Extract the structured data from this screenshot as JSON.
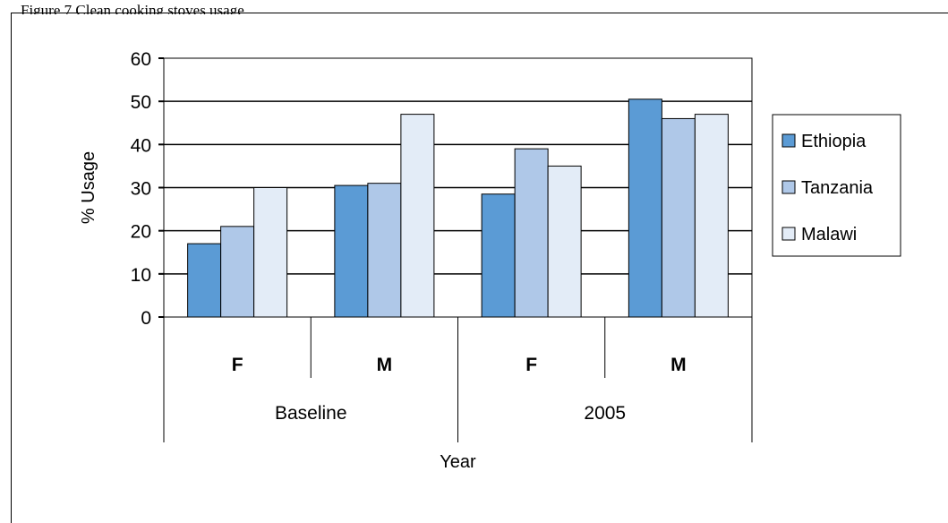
{
  "page": {
    "heading_partial": "Figure 7 Clean cooking stoves usage"
  },
  "chart_data": {
    "type": "bar",
    "groups": [
      {
        "label": "Baseline",
        "categories": [
          "F",
          "M"
        ]
      },
      {
        "label": "2005",
        "categories": [
          "F",
          "M"
        ]
      }
    ],
    "series": [
      {
        "name": "Ethiopia",
        "color": "#5b9bd5",
        "values": [
          17,
          30.5,
          28.5,
          50.5
        ]
      },
      {
        "name": "Tanzania",
        "color": "#afc8e8",
        "values": [
          21,
          31,
          39,
          46
        ]
      },
      {
        "name": "Malawi",
        "color": "#e3ecf7",
        "values": [
          30,
          47,
          35,
          47
        ]
      }
    ],
    "xlabel": "Year",
    "ylabel": "% Usage",
    "ylim": [
      0,
      60
    ],
    "yticks": [
      0,
      10,
      20,
      30,
      40,
      50,
      60
    ],
    "grid": true,
    "legend_position": "right"
  }
}
